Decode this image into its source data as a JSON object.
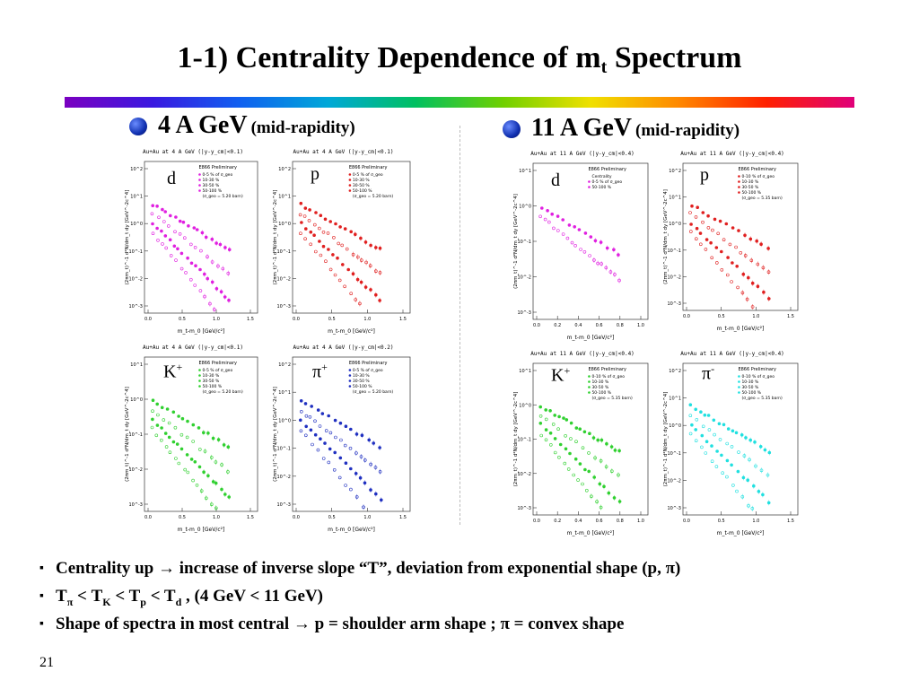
{
  "slide": {
    "title_main": "1-1) Centrality Dependence of m",
    "title_sub": "t",
    "title_end": " Spectrum",
    "page_number": "21"
  },
  "sections": {
    "left": {
      "energy": "4 A GeV",
      "qualifier": "(mid-rapidity)"
    },
    "right": {
      "energy": "11 A GeV",
      "qualifier": "(mid-rapidity)"
    }
  },
  "panels": [
    {
      "id": "d4",
      "particle": "d",
      "sup": "",
      "header": "Au+Au at 4 A GeV (|y-y_cm|<0.1)",
      "color": "#e020e0",
      "yticks": [
        "10^2",
        "10^1",
        "10^0",
        "10^-1",
        "10^-2",
        "10^-3"
      ],
      "xticks": [
        "0.0",
        "0.5",
        "1.0",
        "1.5"
      ],
      "legend": [
        "0-5 % of σ_geo",
        "10-30 %",
        "30-50 %",
        "50-100 %",
        "(σ_geo = 5.20 barn)"
      ]
    },
    {
      "id": "p4",
      "particle": "p",
      "sup": "",
      "header": "Au+Au at 4 A GeV (|y-y_cm|<0.1)",
      "color": "#e02020",
      "yticks": [
        "10^2",
        "10^1",
        "10^0",
        "10^-1",
        "10^-2",
        "10^-3"
      ],
      "xticks": [
        "0.0",
        "0.5",
        "1.0",
        "1.5"
      ],
      "legend": [
        "0-5 % of σ_geo",
        "10-30 %",
        "30-50 %",
        "50-100 %",
        "(σ_geo = 5.20 barn)"
      ]
    },
    {
      "id": "k4",
      "particle": "K",
      "sup": "+",
      "header": "Au+Au at 4 A GeV (|y-y_cm|<0.1)",
      "color": "#30d030",
      "yticks": [
        "10^1",
        "10^0",
        "10^-1",
        "10^-2",
        "10^-3"
      ],
      "xticks": [
        "0.0",
        "0.5",
        "1.0",
        "1.5"
      ],
      "legend": [
        "0-5 % of σ_geo",
        "10-30 %",
        "30-50 %",
        "50-100 %",
        "(σ_geo = 5.20 barn)"
      ]
    },
    {
      "id": "pi4",
      "particle": "π",
      "sup": "+",
      "header": "Au+Au at 4 A GeV (|y-y_cm|<0.2)",
      "color": "#2030c0",
      "yticks": [
        "10^2",
        "10^1",
        "10^0",
        "10^-1",
        "10^-2",
        "10^-3"
      ],
      "xticks": [
        "0.0",
        "0.5",
        "1.0",
        "1.5"
      ],
      "legend": [
        "0-5 % of σ_geo",
        "10-30 %",
        "30-50 %",
        "50-100 %",
        "(σ_geo = 5.20 barn)"
      ]
    },
    {
      "id": "d11",
      "particle": "d",
      "sup": "",
      "header": "Au+Au at 11 A GeV (|y-y_cm|<0.4)",
      "color": "#e020e0",
      "yticks": [
        "10^1",
        "10^0",
        "10^-1",
        "10^-2",
        "10^-3"
      ],
      "xticks": [
        "0.0",
        "0.2",
        "0.4",
        "0.6",
        "0.8",
        "1.0"
      ],
      "legend": [
        "Centrality",
        "0-5 % of σ_geo",
        "50-100 %"
      ]
    },
    {
      "id": "p11",
      "particle": "p",
      "sup": "",
      "header": "Au+Au at 11 A GeV (|y-y_cm|<0.4)",
      "color": "#e02020",
      "yticks": [
        "10^2",
        "10^1",
        "10^0",
        "10^-1",
        "10^-2",
        "10^-3"
      ],
      "xticks": [
        "0.0",
        "0.5",
        "1.0",
        "1.5"
      ],
      "legend": [
        "0-10 % of σ_geo",
        "10-30 %",
        "30-50 %",
        "50-100 %",
        "(σ_geo = 5.35 barn)"
      ]
    },
    {
      "id": "k11",
      "particle": "K",
      "sup": "+",
      "header": "Au+Au at 11 A GeV (|y-y_cm|<0.4)",
      "color": "#30d030",
      "yticks": [
        "10^1",
        "10^0",
        "10^-1",
        "10^-2",
        "10^-3"
      ],
      "xticks": [
        "0.0",
        "0.2",
        "0.4",
        "0.6",
        "0.8",
        "1.0"
      ],
      "legend": [
        "0-10 % of σ_geo",
        "10-30 %",
        "30-50 %",
        "50-100 %",
        "(σ_geo = 5.35 barn)"
      ]
    },
    {
      "id": "pi11",
      "particle": "π",
      "sup": "-",
      "header": "Au+Au at 11 A GeV (|y-y_cm|<0.4)",
      "color": "#20e0e0",
      "yticks": [
        "10^2",
        "10^1",
        "10^0",
        "10^-1",
        "10^-2",
        "10^-3"
      ],
      "xticks": [
        "0.0",
        "0.5",
        "1.0",
        "1.5"
      ],
      "legend": [
        "0-10 % of σ_geo",
        "10-30 %",
        "30-50 %",
        "50-100 %",
        "(σ_geo = 5.35 barn)"
      ]
    }
  ],
  "common_labels": {
    "prelim": "E866 Preliminary",
    "centrality": "Centrality",
    "xlabel": "m_t-m_0 [GeV/c²]",
    "ylabel": "(2πm_t)^-1 d²N/dm_t dy [GeV^-2c^4]"
  },
  "bullets": [
    {
      "text": "Centrality up  → increase of inverse slope “T”, deviation from exponential shape (p, π)"
    },
    {
      "parts": [
        "T",
        "π",
        " < T",
        "K",
        " < T",
        "p",
        " < T",
        "d",
        " , (4 GeV < 11 GeV)"
      ]
    },
    {
      "text": "Shape of spectra in most central → p = shoulder  arm shape ; π  = convex shape"
    }
  ],
  "bullet_marker": "▪"
}
